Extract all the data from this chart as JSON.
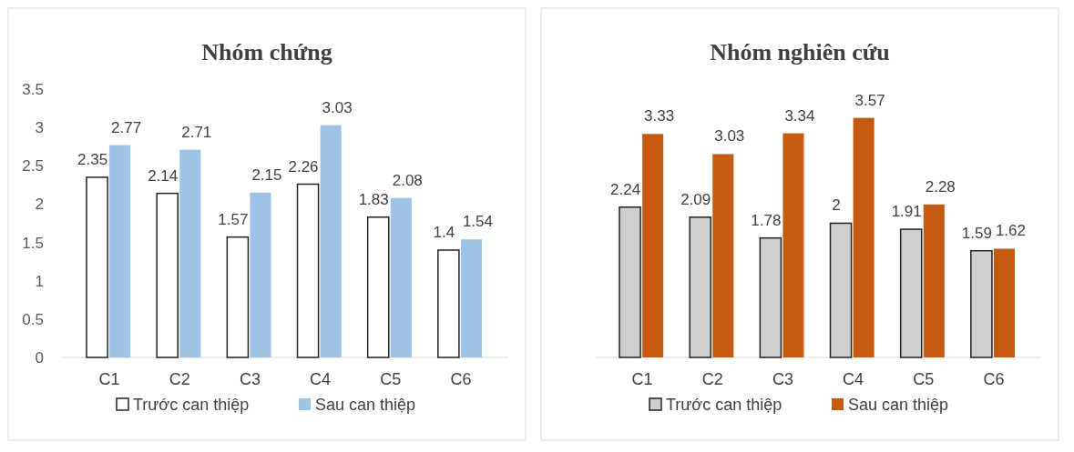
{
  "chart_data": [
    {
      "type": "bar",
      "title": "Nhóm chứng",
      "categories": [
        "C1",
        "C2",
        "C3",
        "C4",
        "C5",
        "C6"
      ],
      "series": [
        {
          "name": "Trước can thiệp",
          "color": "#ffffff",
          "values": [
            2.35,
            2.14,
            1.57,
            2.26,
            1.83,
            1.4
          ]
        },
        {
          "name": "Sau can thiệp",
          "color": "#9dc3e6",
          "values": [
            2.77,
            2.71,
            2.15,
            3.03,
            2.08,
            1.54
          ]
        }
      ],
      "ylim": [
        0,
        3.5
      ],
      "yticks": [
        0,
        0.5,
        1,
        1.5,
        2,
        2.5,
        3,
        3.5
      ],
      "data_labels": true,
      "legend": "bottom",
      "grid": false
    },
    {
      "type": "bar",
      "title": "Nhóm nghiên cứu",
      "categories": [
        "C1",
        "C2",
        "C3",
        "C4",
        "C5",
        "C6"
      ],
      "series": [
        {
          "name": "Trước can thiệp",
          "color": "#d0cece",
          "values": [
            2.24,
            2.09,
            1.78,
            2,
            1.91,
            1.59
          ]
        },
        {
          "name": "Sau can thiệp",
          "color": "#c55a11",
          "values": [
            3.33,
            3.03,
            3.34,
            3.57,
            2.28,
            1.62
          ]
        }
      ],
      "data_labels": true,
      "legend": "bottom",
      "grid": false
    }
  ]
}
